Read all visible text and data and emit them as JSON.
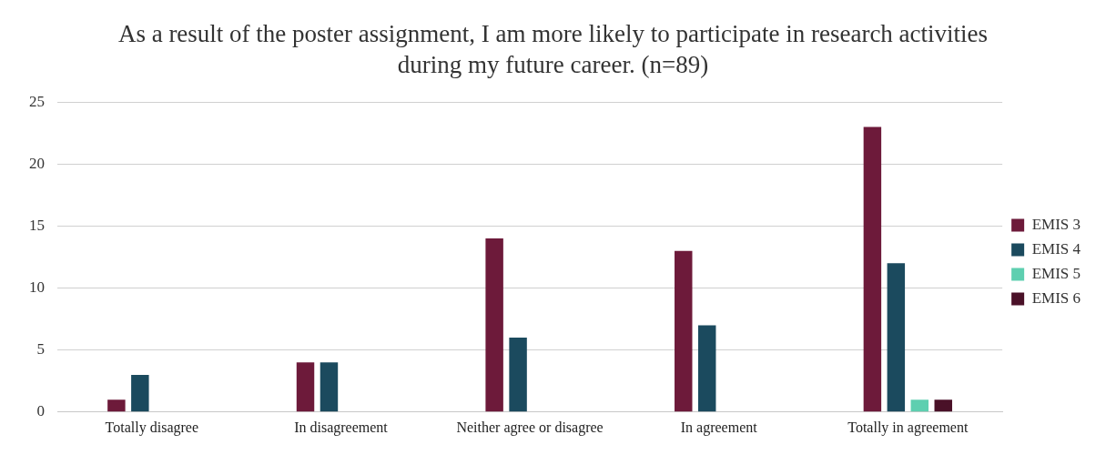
{
  "chart_data": {
    "type": "bar",
    "title": "As a result of the poster assignment, I am more likely to participate in research activities during my future career. (n=89)",
    "categories": [
      "Totally disagree",
      "In disagreement",
      "Neither agree or disagree",
      "In agreement",
      "Totally in agreement"
    ],
    "series": [
      {
        "name": "EMIS 3",
        "color": "#6d1a3a",
        "values": [
          1,
          4,
          14,
          13,
          23
        ]
      },
      {
        "name": "EMIS 4",
        "color": "#1b4a5e",
        "values": [
          3,
          4,
          6,
          7,
          12
        ]
      },
      {
        "name": "EMIS 5",
        "color": "#5ecfb0",
        "values": [
          0,
          0,
          0,
          0,
          1
        ]
      },
      {
        "name": "EMIS 6",
        "color": "#4a1128",
        "values": [
          0,
          0,
          0,
          0,
          1
        ]
      }
    ],
    "ylim": [
      0,
      25
    ],
    "yticks": [
      0,
      5,
      10,
      15,
      20,
      25
    ],
    "grid": "y",
    "legend": "right"
  }
}
